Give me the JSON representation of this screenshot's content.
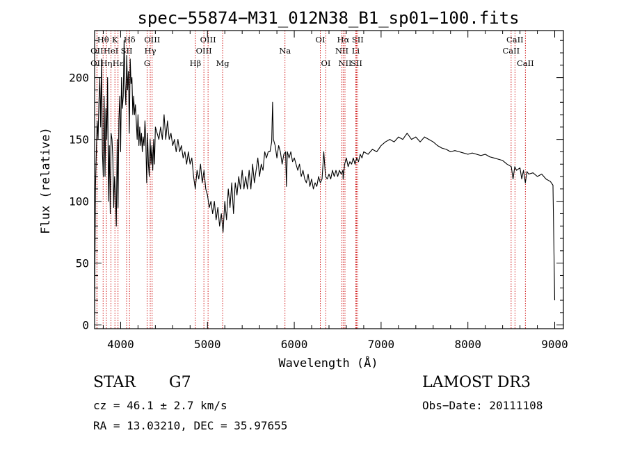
{
  "chart_data": {
    "type": "line",
    "title": "spec−55874−M31_012N38_B1_sp01−100.fits",
    "xlabel": "Wavelength (Å)",
    "ylabel": "Flux (relative)",
    "xlim": [
      3700,
      9100
    ],
    "ylim": [
      -3,
      238
    ],
    "x_ticks": [
      4000,
      5000,
      6000,
      7000,
      8000,
      9000
    ],
    "y_ticks": [
      0,
      50,
      100,
      150,
      200
    ],
    "series": [
      {
        "name": "flux",
        "points": [
          [
            3700,
            8
          ],
          [
            3705,
            60
          ],
          [
            3710,
            110
          ],
          [
            3720,
            140
          ],
          [
            3730,
            165
          ],
          [
            3740,
            150
          ],
          [
            3750,
            180
          ],
          [
            3760,
            200
          ],
          [
            3770,
            160
          ],
          [
            3780,
            215
          ],
          [
            3790,
            140
          ],
          [
            3800,
            120
          ],
          [
            3810,
            185
          ],
          [
            3820,
            120
          ],
          [
            3830,
            175
          ],
          [
            3840,
            150
          ],
          [
            3850,
            200
          ],
          [
            3860,
            100
          ],
          [
            3870,
            145
          ],
          [
            3880,
            90
          ],
          [
            3890,
            155
          ],
          [
            3900,
            150
          ],
          [
            3910,
            135
          ],
          [
            3920,
            95
          ],
          [
            3930,
            120
          ],
          [
            3940,
            105
          ],
          [
            3950,
            80
          ],
          [
            3960,
            150
          ],
          [
            3970,
            95
          ],
          [
            3980,
            165
          ],
          [
            3990,
            185
          ],
          [
            4000,
            140
          ],
          [
            4010,
            200
          ],
          [
            4020,
            175
          ],
          [
            4030,
            185
          ],
          [
            4040,
            230
          ],
          [
            4050,
            195
          ],
          [
            4060,
            178
          ],
          [
            4070,
            218
          ],
          [
            4080,
            190
          ],
          [
            4090,
            205
          ],
          [
            4100,
            155
          ],
          [
            4110,
            215
          ],
          [
            4120,
            195
          ],
          [
            4130,
            200
          ],
          [
            4140,
            170
          ],
          [
            4150,
            185
          ],
          [
            4160,
            170
          ],
          [
            4170,
            178
          ],
          [
            4180,
            165
          ],
          [
            4190,
            150
          ],
          [
            4200,
            170
          ],
          [
            4210,
            145
          ],
          [
            4220,
            160
          ],
          [
            4230,
            145
          ],
          [
            4240,
            155
          ],
          [
            4250,
            140
          ],
          [
            4260,
            152
          ],
          [
            4270,
            145
          ],
          [
            4280,
            165
          ],
          [
            4290,
            150
          ],
          [
            4300,
            115
          ],
          [
            4310,
            155
          ],
          [
            4320,
            130
          ],
          [
            4330,
            120
          ],
          [
            4340,
            150
          ],
          [
            4350,
            130
          ],
          [
            4360,
            145
          ],
          [
            4370,
            125
          ],
          [
            4380,
            150
          ],
          [
            4390,
            130
          ],
          [
            4400,
            160
          ],
          [
            4420,
            155
          ],
          [
            4440,
            150
          ],
          [
            4460,
            160
          ],
          [
            4480,
            150
          ],
          [
            4500,
            170
          ],
          [
            4520,
            150
          ],
          [
            4540,
            165
          ],
          [
            4560,
            150
          ],
          [
            4580,
            155
          ],
          [
            4600,
            145
          ],
          [
            4620,
            150
          ],
          [
            4640,
            140
          ],
          [
            4660,
            150
          ],
          [
            4680,
            140
          ],
          [
            4700,
            145
          ],
          [
            4720,
            135
          ],
          [
            4740,
            140
          ],
          [
            4760,
            130
          ],
          [
            4780,
            140
          ],
          [
            4800,
            130
          ],
          [
            4820,
            135
          ],
          [
            4840,
            120
          ],
          [
            4860,
            110
          ],
          [
            4880,
            125
          ],
          [
            4900,
            118
          ],
          [
            4920,
            130
          ],
          [
            4940,
            115
          ],
          [
            4960,
            125
          ],
          [
            4980,
            110
          ],
          [
            5000,
            105
          ],
          [
            5020,
            95
          ],
          [
            5040,
            100
          ],
          [
            5060,
            90
          ],
          [
            5080,
            100
          ],
          [
            5100,
            85
          ],
          [
            5120,
            95
          ],
          [
            5140,
            80
          ],
          [
            5160,
            90
          ],
          [
            5180,
            75
          ],
          [
            5200,
            100
          ],
          [
            5220,
            85
          ],
          [
            5240,
            110
          ],
          [
            5260,
            95
          ],
          [
            5280,
            115
          ],
          [
            5300,
            90
          ],
          [
            5320,
            115
          ],
          [
            5340,
            105
          ],
          [
            5360,
            120
          ],
          [
            5380,
            110
          ],
          [
            5400,
            125
          ],
          [
            5420,
            110
          ],
          [
            5440,
            120
          ],
          [
            5460,
            110
          ],
          [
            5480,
            125
          ],
          [
            5500,
            110
          ],
          [
            5520,
            130
          ],
          [
            5540,
            115
          ],
          [
            5560,
            125
          ],
          [
            5580,
            135
          ],
          [
            5600,
            120
          ],
          [
            5620,
            130
          ],
          [
            5640,
            125
          ],
          [
            5660,
            140
          ],
          [
            5680,
            135
          ],
          [
            5700,
            140
          ],
          [
            5720,
            140
          ],
          [
            5740,
            148
          ],
          [
            5750,
            180
          ],
          [
            5760,
            150
          ],
          [
            5780,
            145
          ],
          [
            5800,
            135
          ],
          [
            5820,
            145
          ],
          [
            5840,
            140
          ],
          [
            5860,
            130
          ],
          [
            5880,
            138
          ],
          [
            5900,
            140
          ],
          [
            5910,
            112
          ],
          [
            5920,
            140
          ],
          [
            5940,
            135
          ],
          [
            5960,
            140
          ],
          [
            5980,
            132
          ],
          [
            6000,
            135
          ],
          [
            6020,
            130
          ],
          [
            6040,
            125
          ],
          [
            6060,
            130
          ],
          [
            6080,
            120
          ],
          [
            6100,
            125
          ],
          [
            6120,
            118
          ],
          [
            6140,
            115
          ],
          [
            6160,
            122
          ],
          [
            6180,
            112
          ],
          [
            6200,
            118
          ],
          [
            6220,
            110
          ],
          [
            6240,
            115
          ],
          [
            6260,
            112
          ],
          [
            6280,
            120
          ],
          [
            6300,
            115
          ],
          [
            6320,
            118
          ],
          [
            6340,
            140
          ],
          [
            6360,
            120
          ],
          [
            6380,
            118
          ],
          [
            6400,
            122
          ],
          [
            6420,
            118
          ],
          [
            6440,
            125
          ],
          [
            6460,
            120
          ],
          [
            6480,
            125
          ],
          [
            6500,
            120
          ],
          [
            6520,
            125
          ],
          [
            6540,
            122
          ],
          [
            6560,
            125
          ],
          [
            6563,
            118
          ],
          [
            6580,
            130
          ],
          [
            6600,
            135
          ],
          [
            6620,
            128
          ],
          [
            6640,
            132
          ],
          [
            6660,
            130
          ],
          [
            6680,
            135
          ],
          [
            6700,
            130
          ],
          [
            6720,
            135
          ],
          [
            6740,
            132
          ],
          [
            6760,
            138
          ],
          [
            6780,
            135
          ],
          [
            6800,
            140
          ],
          [
            6850,
            138
          ],
          [
            6900,
            142
          ],
          [
            6950,
            140
          ],
          [
            7000,
            145
          ],
          [
            7050,
            148
          ],
          [
            7100,
            150
          ],
          [
            7150,
            148
          ],
          [
            7200,
            152
          ],
          [
            7250,
            150
          ],
          [
            7300,
            155
          ],
          [
            7350,
            150
          ],
          [
            7400,
            152
          ],
          [
            7450,
            148
          ],
          [
            7500,
            152
          ],
          [
            7550,
            150
          ],
          [
            7600,
            148
          ],
          [
            7650,
            145
          ],
          [
            7700,
            143
          ],
          [
            7750,
            142
          ],
          [
            7800,
            140
          ],
          [
            7850,
            141
          ],
          [
            7900,
            140
          ],
          [
            7950,
            139
          ],
          [
            8000,
            138
          ],
          [
            8050,
            139
          ],
          [
            8100,
            138
          ],
          [
            8150,
            137
          ],
          [
            8200,
            138
          ],
          [
            8250,
            136
          ],
          [
            8300,
            135
          ],
          [
            8350,
            134
          ],
          [
            8400,
            133
          ],
          [
            8450,
            130
          ],
          [
            8500,
            128
          ],
          [
            8520,
            118
          ],
          [
            8540,
            128
          ],
          [
            8560,
            125
          ],
          [
            8600,
            127
          ],
          [
            8620,
            118
          ],
          [
            8640,
            125
          ],
          [
            8662,
            115
          ],
          [
            8680,
            124
          ],
          [
            8700,
            122
          ],
          [
            8750,
            123
          ],
          [
            8800,
            120
          ],
          [
            8850,
            122
          ],
          [
            8900,
            118
          ],
          [
            8950,
            116
          ],
          [
            8980,
            113
          ],
          [
            9000,
            20
          ]
        ]
      }
    ],
    "spectral_lines": [
      {
        "label": "Hθ",
        "x": 3798,
        "row": 1
      },
      {
        "label": "K",
        "x": 3934,
        "row": 1
      },
      {
        "label": "Hδ",
        "x": 4102,
        "row": 1
      },
      {
        "label": "OII",
        "x": 3727,
        "row": 2
      },
      {
        "label": "HeI",
        "x": 3889,
        "row": 2
      },
      {
        "label": "SII",
        "x": 4069,
        "row": 2
      },
      {
        "label": "OII",
        "x": 3727,
        "row": 3
      },
      {
        "label": "Hη",
        "x": 3836,
        "row": 3
      },
      {
        "label": "Hε",
        "x": 3970,
        "row": 3
      },
      {
        "label": "OIII",
        "x": 4363,
        "row": 1
      },
      {
        "label": "Hγ",
        "x": 4341,
        "row": 2
      },
      {
        "label": "G",
        "x": 4305,
        "row": 3
      },
      {
        "label": "OIII",
        "x": 5007,
        "row": 1
      },
      {
        "label": "OIII",
        "x": 4959,
        "row": 2
      },
      {
        "label": "Hβ",
        "x": 4861,
        "row": 3
      },
      {
        "label": "Mg",
        "x": 5175,
        "row": 3
      },
      {
        "label": "Na",
        "x": 5893,
        "row": 2
      },
      {
        "label": "OI",
        "x": 6300,
        "row": 1
      },
      {
        "label": "OI",
        "x": 6364,
        "row": 3
      },
      {
        "label": "Hα",
        "x": 6563,
        "row": 1
      },
      {
        "label": "SII",
        "x": 6731,
        "row": 1
      },
      {
        "label": "NII",
        "x": 6548,
        "row": 2
      },
      {
        "label": "Li",
        "x": 6708,
        "row": 2
      },
      {
        "label": "NII",
        "x": 6584,
        "row": 3
      },
      {
        "label": "SII",
        "x": 6716,
        "row": 3
      },
      {
        "label": "CaII",
        "x": 8542,
        "row": 1
      },
      {
        "label": "CaII",
        "x": 8498,
        "row": 2
      },
      {
        "label": "CaII",
        "x": 8662,
        "row": 3
      }
    ]
  },
  "info": {
    "object_class": "STAR",
    "subclass": "G7",
    "redshift": "cz = 46.1 ± 2.7 km/s",
    "coords": "RA =  13.03210, DEC =  35.97655",
    "survey": "LAMOST DR3",
    "obs_date": "Obs−Date: 20111108"
  }
}
